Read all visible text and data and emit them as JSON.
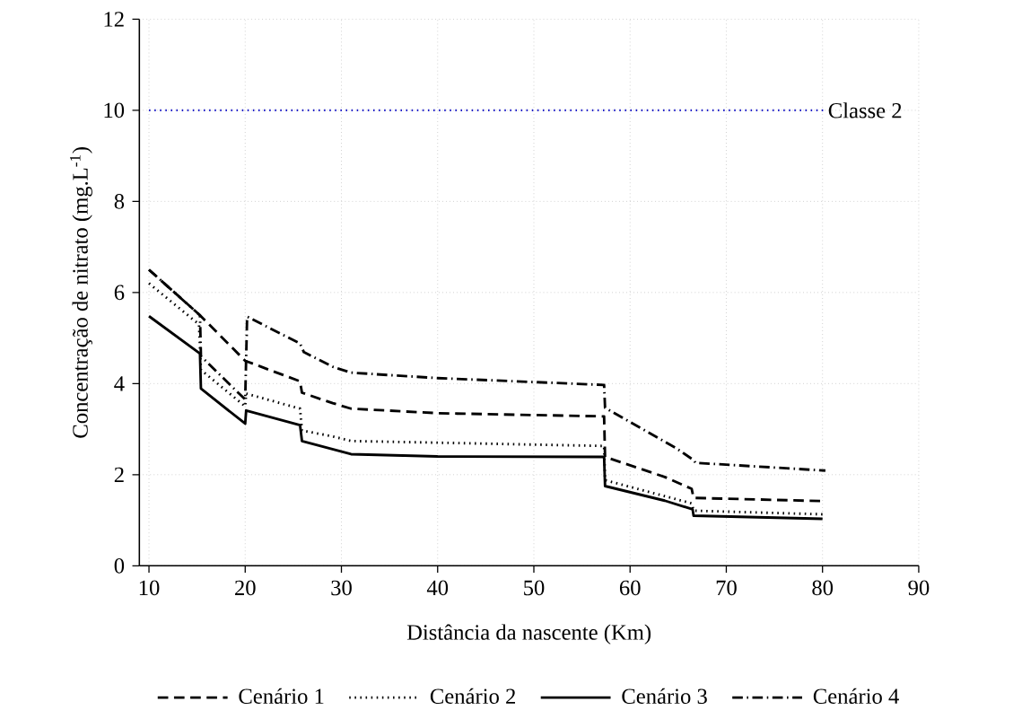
{
  "chart_data": {
    "type": "line",
    "xlabel": "Distância da nascente (Km)",
    "ylabel": "Concentração de nitrato (mg.L$^{-1}$)",
    "xlim": [
      9,
      90
    ],
    "ylim": [
      0,
      12
    ],
    "xticks": [
      10,
      20,
      30,
      40,
      50,
      60,
      70,
      80,
      90
    ],
    "yticks": [
      0,
      2,
      4,
      6,
      8,
      10,
      12
    ],
    "grid": true,
    "legend": "bottom",
    "ref_lines": [
      {
        "axis": "y",
        "value": 10,
        "label": "Classe 2",
        "color": "#1c1cc8",
        "line_style": "dotted"
      }
    ],
    "series": [
      {
        "name": "Cenário 1",
        "color": "#000000",
        "line_style": "dashed",
        "x": [
          10,
          15.3,
          20,
          25.7,
          25.9,
          29.1,
          31,
          40,
          57.3,
          57.4,
          63.6,
          66.4,
          66.6,
          80
        ],
        "values": [
          6.5,
          5.5,
          4.5,
          4.05,
          3.8,
          3.57,
          3.45,
          3.35,
          3.28,
          2.39,
          1.95,
          1.69,
          1.49,
          1.42
        ]
      },
      {
        "name": "Cenário 2",
        "color": "#000000",
        "line_style": "dotted",
        "x": [
          10,
          15.2,
          15.4,
          20,
          20.1,
          25.7,
          25.9,
          29.1,
          31,
          57.3,
          57.4,
          66.4,
          66.6,
          80
        ],
        "values": [
          6.2,
          5.3,
          4.3,
          3.5,
          3.78,
          3.45,
          2.97,
          2.84,
          2.74,
          2.63,
          1.88,
          1.37,
          1.21,
          1.13
        ]
      },
      {
        "name": "Cenário 3",
        "color": "#000000",
        "line_style": "solid",
        "x": [
          10,
          15.3,
          15.4,
          20,
          20.1,
          25.7,
          25.9,
          31,
          40,
          57.3,
          57.4,
          63.6,
          66.5,
          66.6,
          80
        ],
        "values": [
          5.48,
          4.66,
          3.89,
          3.12,
          3.41,
          3.09,
          2.74,
          2.45,
          2.4,
          2.39,
          1.75,
          1.43,
          1.24,
          1.1,
          1.03
        ]
      },
      {
        "name": "Cenário 4",
        "color": "#000000",
        "line_style": "dashdot",
        "x": [
          10,
          15.3,
          15.4,
          20,
          20.2,
          25.7,
          26.1,
          29.1,
          31,
          40,
          57.3,
          57.4,
          64.8,
          66.6,
          66.8,
          80.3
        ],
        "values": [
          6.5,
          5.5,
          4.6,
          3.65,
          5.47,
          4.88,
          4.69,
          4.37,
          4.24,
          4.12,
          3.97,
          3.47,
          2.58,
          2.32,
          2.26,
          2.09
        ]
      }
    ]
  }
}
